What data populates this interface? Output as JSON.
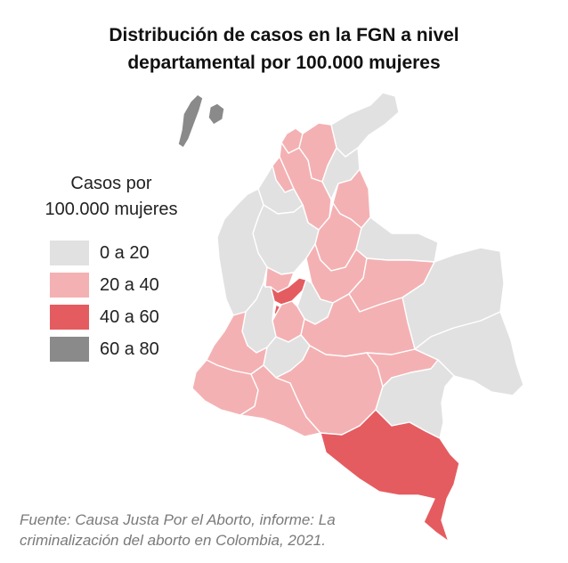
{
  "title": {
    "line1": "Distribución de casos en la FGN a nivel",
    "line2": "departamental por 100.000 mujeres"
  },
  "legend": {
    "title_line1": "Casos por",
    "title_line2": "100.000 mujeres",
    "items": [
      {
        "label": "0 a 20",
        "color": "#e1e1e1"
      },
      {
        "label": "20 a 40",
        "color": "#f4b1b3"
      },
      {
        "label": "40 a 60",
        "color": "#e45c60"
      },
      {
        "label": "60 a 80",
        "color": "#8a8a8a"
      }
    ]
  },
  "source": {
    "line1": "Fuente: Causa Justa Por el Aborto, informe: La",
    "line2": "criminalización del aborto en Colombia, 2021."
  },
  "map": {
    "class_colors": {
      "0-20": "#e1e1e1",
      "20-40": "#f4b1b3",
      "40-60": "#e45c60",
      "60-80": "#8a8a8a"
    }
  }
}
